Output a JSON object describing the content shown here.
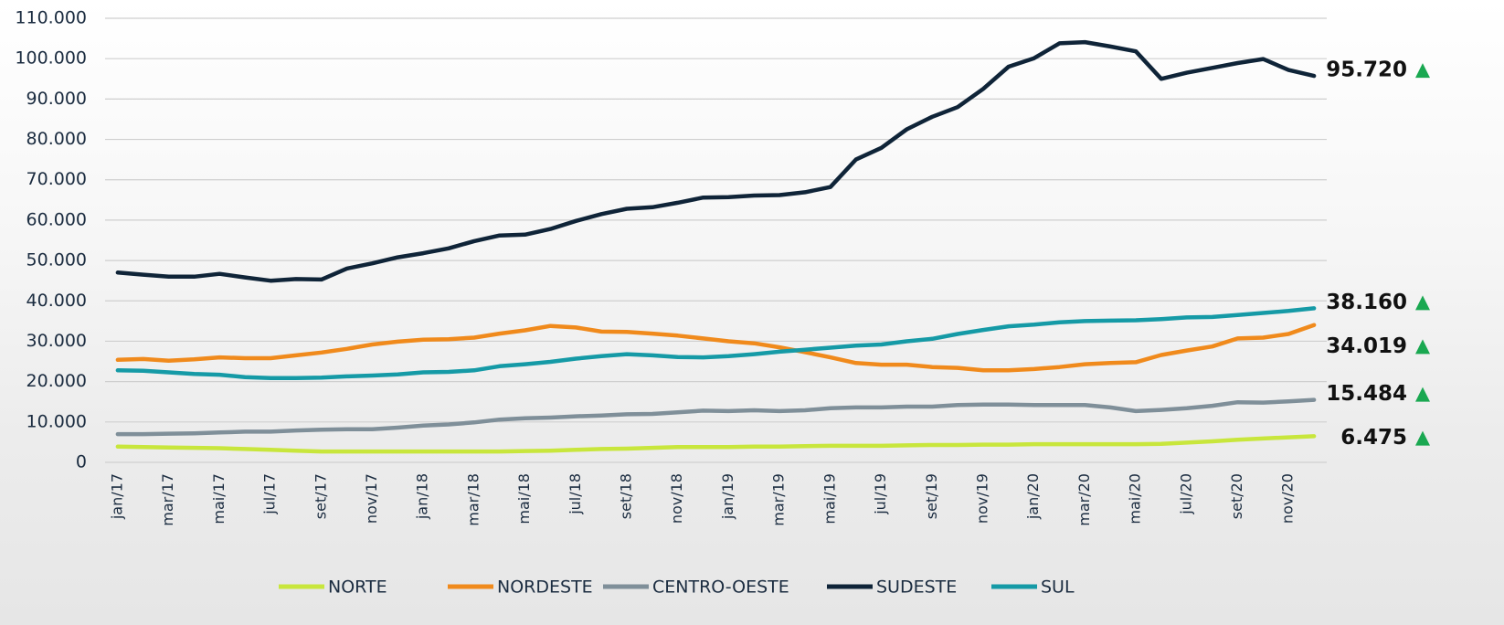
{
  "chart_data": {
    "type": "line",
    "categories": [
      "jan/17",
      null,
      "mar/17",
      null,
      "mai/17",
      null,
      "jul/17",
      null,
      "set/17",
      null,
      "nov/17",
      null,
      "jan/18",
      null,
      "mar/18",
      null,
      "mai/18",
      null,
      "jul/18",
      null,
      "set/18",
      null,
      "nov/18",
      null,
      "jan/19",
      null,
      "mar/19",
      null,
      "mai/19",
      null,
      "jul/19",
      null,
      "set/19",
      null,
      "nov/19",
      null,
      "jan/20",
      null,
      "mar/20",
      null,
      "mai/20",
      null,
      "jul/20",
      null,
      "set/20",
      null,
      "nov/20",
      null
    ],
    "ylim": [
      0,
      110000
    ],
    "yticks": [
      0,
      {
        "value": 10000,
        "label": "10.000"
      },
      {
        "value": 20000,
        "label": "20.000"
      },
      {
        "value": 30000,
        "label": "30.000"
      },
      {
        "value": 40000,
        "label": "40.000"
      },
      {
        "value": 50000,
        "label": "50.000"
      },
      {
        "value": 60000,
        "label": "60.000"
      },
      {
        "value": 70000,
        "label": "70.000"
      },
      {
        "value": 80000,
        "label": "80.000"
      },
      {
        "value": 90000,
        "label": "90.000"
      },
      {
        "value": 100000,
        "label": "100.000"
      },
      {
        "value": 110000,
        "label": "110.000"
      }
    ],
    "grid": true,
    "legend": "bottom",
    "series": [
      {
        "name": "NORTE",
        "color": "#c8e63c",
        "values": [
          3900,
          3800,
          3700,
          3600,
          3500,
          3300,
          3100,
          2900,
          2700,
          2700,
          2700,
          2700,
          2700,
          2700,
          2700,
          2700,
          2800,
          2900,
          3100,
          3300,
          3400,
          3600,
          3800,
          3800,
          3800,
          3900,
          3900,
          4000,
          4100,
          4100,
          4100,
          4200,
          4300,
          4300,
          4400,
          4400,
          4500,
          4500,
          4500,
          4500,
          4500,
          4600,
          4900,
          5200,
          5600,
          5900,
          6200,
          6475
        ],
        "value_labels": [
          null,
          null,
          null,
          null,
          null,
          null,
          null,
          null,
          null,
          null,
          null,
          null,
          null,
          null,
          null,
          null,
          null,
          null,
          null,
          null,
          null,
          null,
          null,
          null,
          null,
          null,
          null,
          null,
          null,
          null,
          null,
          null,
          null,
          null,
          null,
          null,
          null,
          null,
          null,
          null,
          null,
          null,
          null,
          null,
          null,
          null,
          null,
          "6.475"
        ]
      },
      {
        "name": "NORDESTE",
        "color": "#f08a1c",
        "values": [
          25400,
          25600,
          25200,
          25500,
          26000,
          25800,
          25800,
          26500,
          27200,
          28100,
          29200,
          29900,
          30400,
          30500,
          30900,
          31900,
          32700,
          33800,
          33400,
          32400,
          32300,
          31900,
          31400,
          30700,
          30000,
          29500,
          28500,
          27300,
          26000,
          24600,
          24200,
          24200,
          23600,
          23400,
          22800,
          22800,
          23100,
          23600,
          24300,
          24600,
          24800,
          26600,
          27700,
          28700,
          30700,
          30900,
          31800,
          34019
        ],
        "value_labels": [
          null,
          null,
          null,
          null,
          null,
          null,
          null,
          null,
          null,
          null,
          null,
          null,
          null,
          null,
          null,
          null,
          null,
          null,
          null,
          null,
          null,
          null,
          null,
          null,
          null,
          null,
          null,
          null,
          null,
          null,
          null,
          null,
          null,
          null,
          null,
          null,
          null,
          null,
          null,
          null,
          null,
          null,
          null,
          null,
          null,
          null,
          null,
          "34.019"
        ]
      },
      {
        "name": "CENTRO-OESTE",
        "color": "#7f8f99",
        "values": [
          7000,
          7000,
          7100,
          7200,
          7400,
          7600,
          7600,
          7900,
          8100,
          8200,
          8200,
          8600,
          9100,
          9400,
          9900,
          10600,
          10900,
          11100,
          11400,
          11600,
          11900,
          12000,
          12400,
          12800,
          12700,
          12900,
          12700,
          12900,
          13400,
          13600,
          13600,
          13800,
          13800,
          14200,
          14300,
          14300,
          14200,
          14200,
          14200,
          13600,
          12700,
          13000,
          13400,
          14000,
          14900,
          14800,
          15100,
          15484
        ],
        "value_labels": [
          null,
          null,
          null,
          null,
          null,
          null,
          null,
          null,
          null,
          null,
          null,
          null,
          null,
          null,
          null,
          null,
          null,
          null,
          null,
          null,
          null,
          null,
          null,
          null,
          null,
          null,
          null,
          null,
          null,
          null,
          null,
          null,
          null,
          null,
          null,
          null,
          null,
          null,
          null,
          null,
          null,
          null,
          null,
          null,
          null,
          null,
          null,
          "15.484"
        ]
      },
      {
        "name": "SUDESTE",
        "color": "#0f2438",
        "values": [
          47000,
          46500,
          46000,
          46000,
          46700,
          45800,
          45000,
          45400,
          45300,
          48000,
          49300,
          50800,
          51800,
          53000,
          54800,
          56200,
          56400,
          57800,
          59800,
          61500,
          62800,
          63200,
          64300,
          65600,
          65700,
          66100,
          66200,
          66900,
          68200,
          75000,
          77900,
          82500,
          85600,
          88000,
          92500,
          98000,
          100100,
          103800,
          104100,
          103000,
          101800,
          95000,
          96500,
          97700,
          98900,
          99900,
          97200,
          95720
        ],
        "value_labels": [
          null,
          null,
          null,
          null,
          null,
          null,
          null,
          null,
          null,
          null,
          null,
          null,
          null,
          null,
          null,
          null,
          null,
          null,
          null,
          null,
          null,
          null,
          null,
          null,
          null,
          null,
          null,
          null,
          null,
          null,
          null,
          null,
          null,
          null,
          null,
          null,
          null,
          null,
          null,
          null,
          null,
          null,
          null,
          null,
          null,
          null,
          null,
          "95.720"
        ]
      },
      {
        "name": "SUL",
        "color": "#159aa6",
        "values": [
          22800,
          22700,
          22300,
          21900,
          21700,
          21100,
          20900,
          20900,
          21000,
          21300,
          21500,
          21800,
          22300,
          22400,
          22800,
          23800,
          24300,
          24900,
          25700,
          26300,
          26800,
          26500,
          26100,
          26000,
          26300,
          26800,
          27400,
          27900,
          28400,
          28900,
          29200,
          30000,
          30600,
          31800,
          32800,
          33700,
          34100,
          34700,
          35000,
          35100,
          35200,
          35500,
          35900,
          36000,
          36500,
          37000,
          37500,
          38160
        ],
        "value_labels": [
          null,
          null,
          null,
          null,
          null,
          null,
          null,
          null,
          null,
          null,
          null,
          null,
          null,
          null,
          null,
          null,
          null,
          null,
          null,
          null,
          null,
          null,
          null,
          null,
          null,
          null,
          null,
          null,
          null,
          null,
          null,
          null,
          null,
          null,
          null,
          null,
          null,
          null,
          null,
          null,
          null,
          null,
          null,
          null,
          null,
          null,
          null,
          "38.160"
        ]
      }
    ]
  }
}
